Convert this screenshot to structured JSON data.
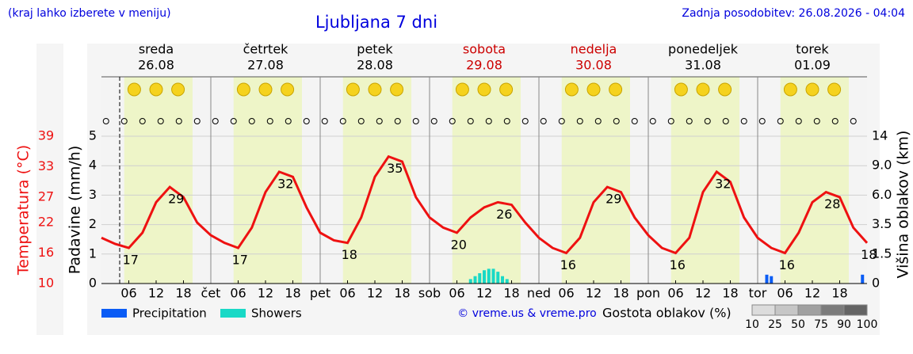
{
  "header": {
    "note": "(kraj lahko izberete v meniju)",
    "title": "Ljubljana 7 dni",
    "updated": "Zadnja posodobitev: 26.08.2026 - 04:04",
    "credit": "© vreme.us & vreme.pro"
  },
  "chart_data": {
    "type": "line",
    "days": [
      {
        "name": "sreda",
        "date": "26.08",
        "color": "#000000"
      },
      {
        "name": "četrtek",
        "date": "27.08",
        "color": "#000000"
      },
      {
        "name": "petek",
        "date": "28.08",
        "color": "#000000"
      },
      {
        "name": "sobota",
        "date": "29.08",
        "color": "#cc0000"
      },
      {
        "name": "nedelja",
        "date": "30.08",
        "color": "#cc0000"
      },
      {
        "name": "ponedeljek",
        "date": "31.08",
        "color": "#000000"
      },
      {
        "name": "torek",
        "date": "01.09",
        "color": "#000000"
      }
    ],
    "xlim": [
      0,
      168
    ],
    "xticks": [
      {
        "value": 6,
        "label": "06"
      },
      {
        "value": 12,
        "label": "12"
      },
      {
        "value": 18,
        "label": "18"
      },
      {
        "value": 24,
        "label": "čet"
      },
      {
        "value": 30,
        "label": "06"
      },
      {
        "value": 36,
        "label": "12"
      },
      {
        "value": 42,
        "label": "18"
      },
      {
        "value": 48,
        "label": "pet"
      },
      {
        "value": 54,
        "label": "06"
      },
      {
        "value": 60,
        "label": "12"
      },
      {
        "value": 66,
        "label": "18"
      },
      {
        "value": 72,
        "label": "sob"
      },
      {
        "value": 78,
        "label": "06"
      },
      {
        "value": 84,
        "label": "12"
      },
      {
        "value": 90,
        "label": "18"
      },
      {
        "value": 96,
        "label": "ned"
      },
      {
        "value": 102,
        "label": "06"
      },
      {
        "value": 108,
        "label": "12"
      },
      {
        "value": 114,
        "label": "18"
      },
      {
        "value": 120,
        "label": "pon"
      },
      {
        "value": 126,
        "label": "06"
      },
      {
        "value": 132,
        "label": "12"
      },
      {
        "value": 138,
        "label": "18"
      },
      {
        "value": 144,
        "label": "tor"
      },
      {
        "value": 150,
        "label": "06"
      },
      {
        "value": 156,
        "label": "12"
      },
      {
        "value": 162,
        "label": "18"
      }
    ],
    "daylight": [
      5,
      20
    ],
    "now": 4,
    "ylabel": "Padavine (mm/h)",
    "ylim": [
      0,
      5
    ],
    "yticks": [
      0,
      1,
      2,
      3,
      4,
      5
    ],
    "y2label": "Temperatura (°C)",
    "y2lim": [
      10,
      39
    ],
    "y2ticks": [
      10,
      16,
      22,
      27,
      33,
      39
    ],
    "y3label": "Višina oblakov (km)",
    "y3ticks": [
      0,
      1.5,
      3.5,
      {
        "value": 6,
        "label": "6.0"
      },
      {
        "value": 9,
        "label": "9.0"
      },
      14
    ],
    "grid": true,
    "temperature": {
      "color": "#ee1111",
      "axis": "y2",
      "x": [
        0,
        3,
        6,
        9,
        12,
        15,
        18,
        21,
        24,
        27,
        30,
        33,
        36,
        39,
        42,
        45,
        48,
        51,
        54,
        57,
        60,
        63,
        66,
        69,
        72,
        75,
        78,
        81,
        84,
        87,
        90,
        93,
        96,
        99,
        102,
        105,
        108,
        111,
        114,
        117,
        120,
        123,
        126,
        129,
        132,
        135,
        138,
        141,
        144,
        147,
        150,
        153,
        156,
        159,
        162,
        165,
        168
      ],
      "values": [
        19,
        17.8,
        17,
        20,
        26,
        29,
        27,
        22,
        19.5,
        18,
        17,
        21,
        28,
        32,
        31,
        25,
        20,
        18.5,
        18,
        23,
        31,
        35,
        34,
        27,
        23,
        21,
        20,
        23,
        25,
        26,
        25.5,
        22,
        19,
        17,
        16,
        19,
        26,
        29,
        28,
        23,
        19.5,
        17,
        16,
        19,
        28,
        32,
        30,
        23,
        19,
        17,
        16,
        20,
        26,
        28,
        27,
        21,
        18
      ]
    },
    "extremes": [
      {
        "x": 5,
        "value": 17
      },
      {
        "x": 15,
        "value": 29
      },
      {
        "x": 29,
        "value": 17
      },
      {
        "x": 39,
        "value": 32
      },
      {
        "x": 53,
        "value": 18
      },
      {
        "x": 63,
        "value": 35
      },
      {
        "x": 77,
        "value": 20
      },
      {
        "x": 87,
        "value": 26
      },
      {
        "x": 101,
        "value": 16
      },
      {
        "x": 111,
        "value": 29
      },
      {
        "x": 125,
        "value": 16
      },
      {
        "x": 135,
        "value": 32
      },
      {
        "x": 149,
        "value": 16
      },
      {
        "x": 159,
        "value": 28
      },
      {
        "x": 167,
        "value": 18
      }
    ],
    "series": [
      {
        "name": "Precipitation",
        "color": "#0a5cf5",
        "x": [
          146,
          147,
          167
        ],
        "values": [
          0.3,
          0.25,
          0.3
        ]
      },
      {
        "name": "Showers",
        "color": "#19d9c6",
        "x": [
          81,
          82,
          83,
          84,
          85,
          86,
          87,
          88,
          89
        ],
        "values": [
          0.15,
          0.25,
          0.35,
          0.45,
          0.5,
          0.5,
          0.4,
          0.25,
          0.15
        ]
      }
    ],
    "cloud_legend": {
      "title": "Gostota oblakov (%)",
      "levels": [
        10,
        25,
        50,
        75,
        90,
        100
      ]
    }
  }
}
